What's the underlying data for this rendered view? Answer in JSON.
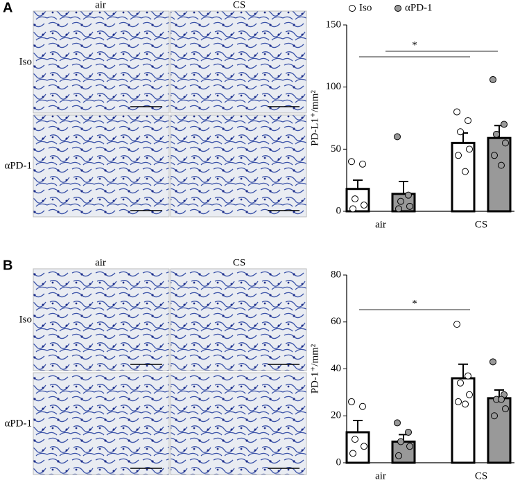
{
  "panels": [
    {
      "letter": "A",
      "columns": [
        "air",
        "CS"
      ],
      "rows": [
        "Iso",
        "αPD-1"
      ]
    },
    {
      "letter": "B",
      "columns": [
        "air",
        "CS"
      ],
      "rows": [
        "Iso",
        "αPD-1"
      ]
    }
  ],
  "chart_data": [
    {
      "type": "bar",
      "ylabel": "PD-L1⁺/mm²",
      "categories": [
        "air",
        "CS"
      ],
      "series": [
        {
          "name": "Iso",
          "color": "#ffffff",
          "values": [
            18,
            55
          ],
          "errors": [
            7,
            8
          ],
          "points": [
            [
              40,
              38,
              10,
              5,
              2
            ],
            [
              80,
              73,
              64,
              50,
              45,
              32
            ]
          ]
        },
        {
          "name": "αPD-1",
          "color": "#999999",
          "values": [
            14,
            59
          ],
          "errors": [
            10,
            10
          ],
          "points": [
            [
              60,
              13,
              8,
              4,
              2
            ],
            [
              106,
              70,
              62,
              55,
              45,
              37
            ]
          ]
        }
      ],
      "ylim": [
        0,
        150
      ],
      "yticks": [
        0,
        50,
        100,
        150
      ],
      "annotation": "*"
    },
    {
      "type": "bar",
      "ylabel": "PD-1⁺/mm²",
      "categories": [
        "air",
        "CS"
      ],
      "series": [
        {
          "name": "Iso",
          "color": "#ffffff",
          "values": [
            13,
            36
          ],
          "errors": [
            5,
            6
          ],
          "points": [
            [
              26,
              24,
              10,
              7,
              4
            ],
            [
              59,
              37,
              34,
              29,
              26,
              25
            ]
          ]
        },
        {
          "name": "αPD-1",
          "color": "#999999",
          "values": [
            9,
            27.5
          ],
          "errors": [
            3,
            3.5
          ],
          "points": [
            [
              17,
              13,
              9,
              7,
              3
            ],
            [
              43,
              29,
              27,
              23,
              20,
              27
            ]
          ]
        }
      ],
      "ylim": [
        0,
        80
      ],
      "yticks": [
        0,
        20,
        40,
        60,
        80
      ],
      "annotation": "*"
    }
  ]
}
